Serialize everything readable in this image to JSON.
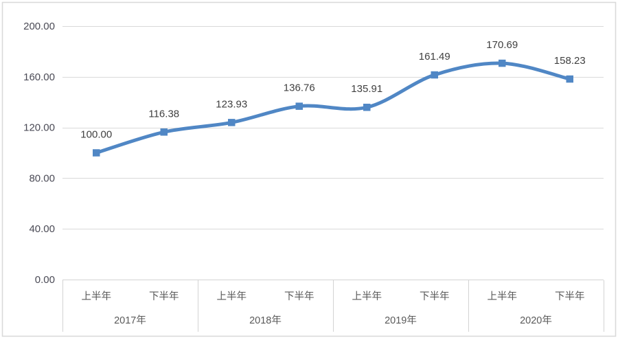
{
  "chart_data": {
    "type": "line",
    "title": "",
    "smooth": true,
    "marker": "square",
    "legend_position": "none",
    "grid": true,
    "series": [
      {
        "name": "index-series",
        "values": [
          100.0,
          116.38,
          123.93,
          136.76,
          135.91,
          161.49,
          170.69,
          158.23
        ],
        "data_labels": [
          "100.00",
          "116.38",
          "123.93",
          "136.76",
          "135.91",
          "161.49",
          "170.69",
          "158.23"
        ]
      }
    ],
    "categories": [
      "上半年",
      "下半年",
      "上半年",
      "下半年",
      "上半年",
      "下半年",
      "上半年",
      "下半年"
    ],
    "category_groups": [
      "2017年",
      "2018年",
      "2019年",
      "2020年"
    ],
    "xlabel": "",
    "ylabel": "",
    "ylim": [
      0,
      200
    ],
    "y_tick_values": [
      0,
      40,
      80,
      120,
      160,
      200
    ],
    "y_tick_labels": [
      "0.00",
      "40.00",
      "80.00",
      "120.00",
      "160.00",
      "200.00"
    ],
    "colors": {
      "line": "#5087C5",
      "marker_fill": "#5087C5",
      "gridline": "#D9D9D9",
      "axis_line": "#D3D3D3",
      "chart_border": "#D9D9D9",
      "y_tick_label": "#4A4A55",
      "category_label": "#595959",
      "data_label": "#3F3F3F",
      "background": "#FFFFFF"
    }
  }
}
